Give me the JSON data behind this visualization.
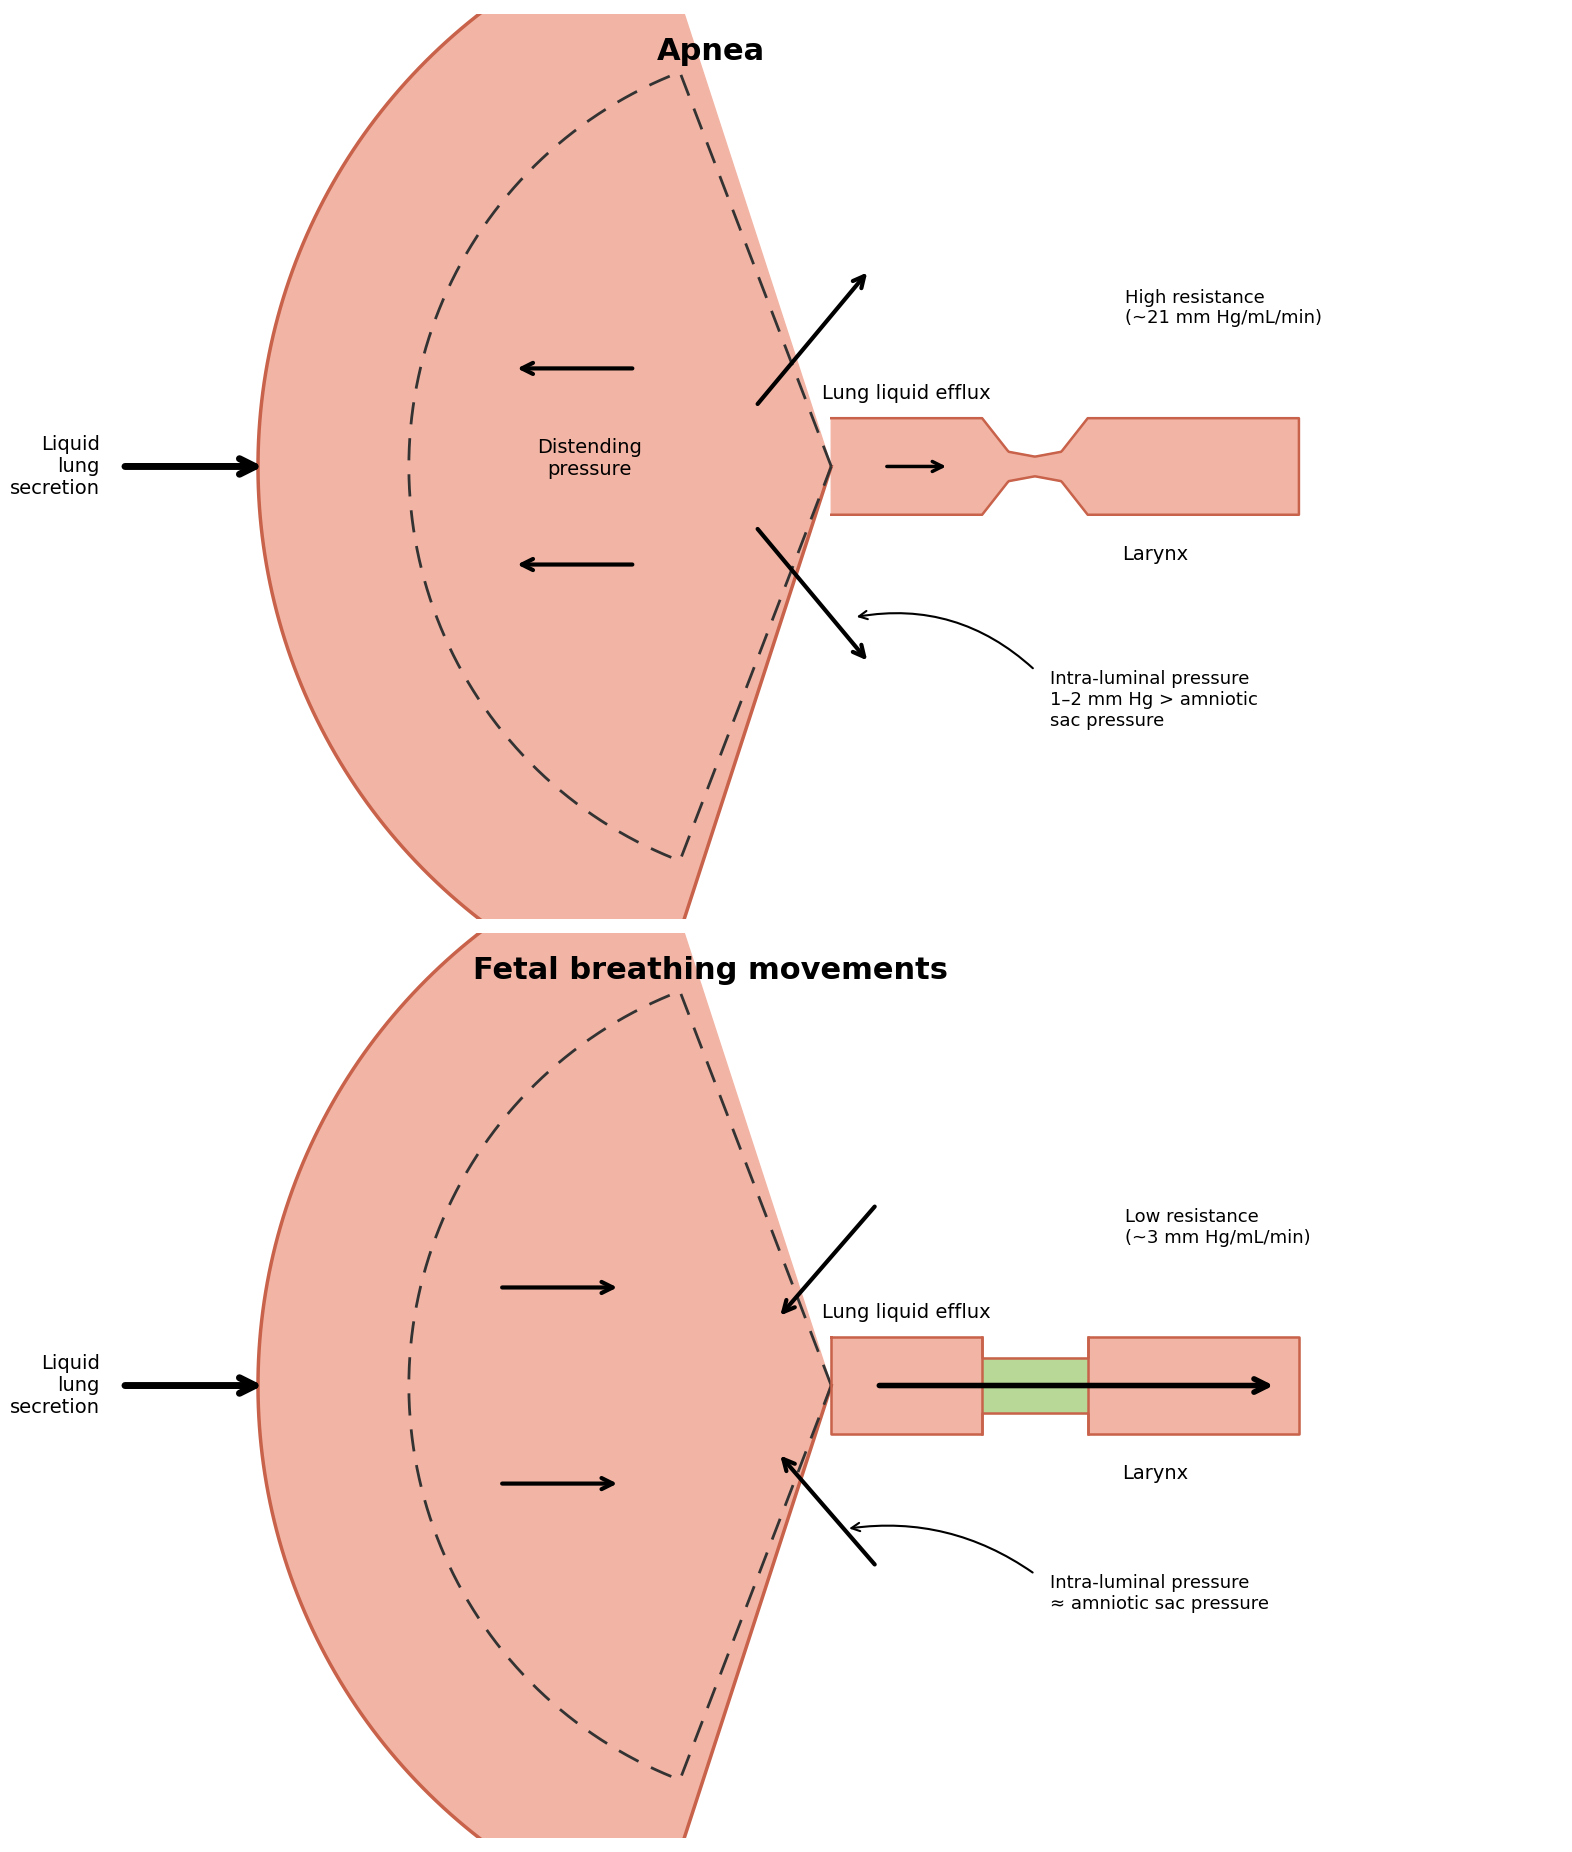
{
  "background_color": "#ffffff",
  "lung_fill_color": "#f2b5a5",
  "lung_edge_color": "#c8624a",
  "larynx_fill_color": "#f2b5a5",
  "larynx_edge_color": "#c8624a",
  "larynx_open_fill": "#b8d898",
  "dashed_color": "#333333",
  "title_apnea": "Apnea",
  "title_fbm": "Fetal breathing movements",
  "label_liquid_lung": "Liquid\nlung\nsecretion",
  "label_distending": "Distending\npressure",
  "label_efflux_apnea": "Lung liquid efflux",
  "label_efflux_fbm": "Lung liquid efflux",
  "label_larynx": "Larynx",
  "label_high_resistance": "High resistance\n(~21 mm Hg/mL/min)",
  "label_low_resistance": "Low resistance\n(~3 mm Hg/mL/min)",
  "label_intra_apnea": "Intra-luminal pressure\n1–2 mm Hg > amniotic\nsac pressure",
  "label_intra_fbm": "Intra-luminal pressure\n≈ amniotic sac pressure",
  "title_fontsize": 20,
  "label_fontsize": 14,
  "small_fontsize": 13
}
